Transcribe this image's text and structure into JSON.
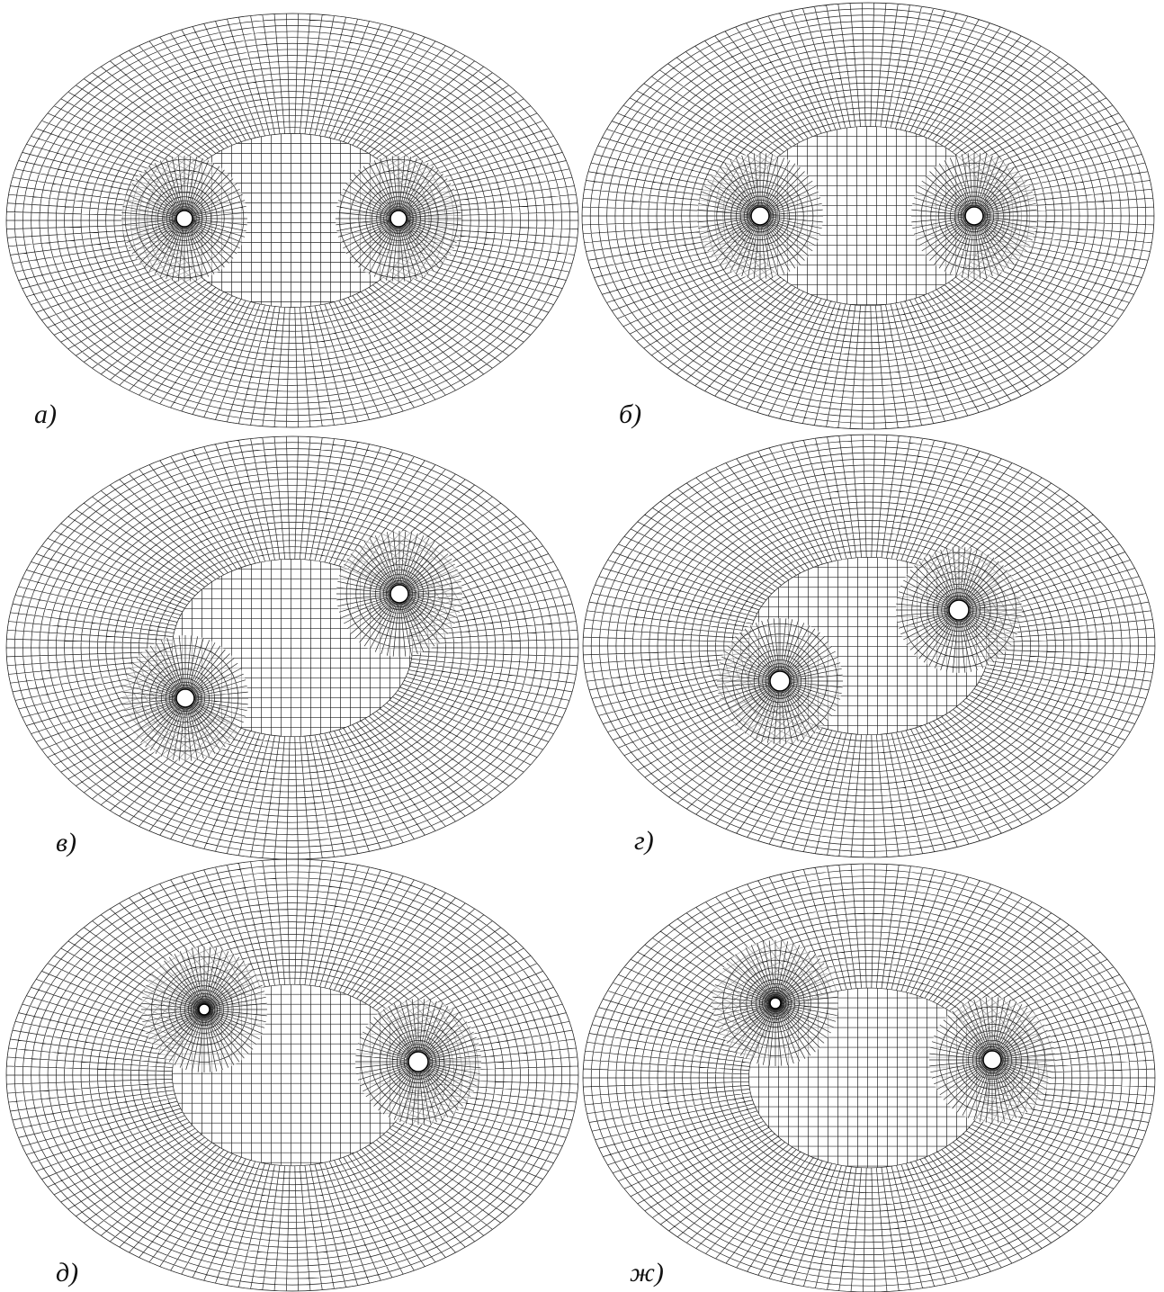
{
  "panels": [
    {
      "label": "а)"
    },
    {
      "label": "б)"
    },
    {
      "label": "в)"
    },
    {
      "label": "г)"
    },
    {
      "label": "д)"
    },
    {
      "label": "ж)"
    }
  ]
}
